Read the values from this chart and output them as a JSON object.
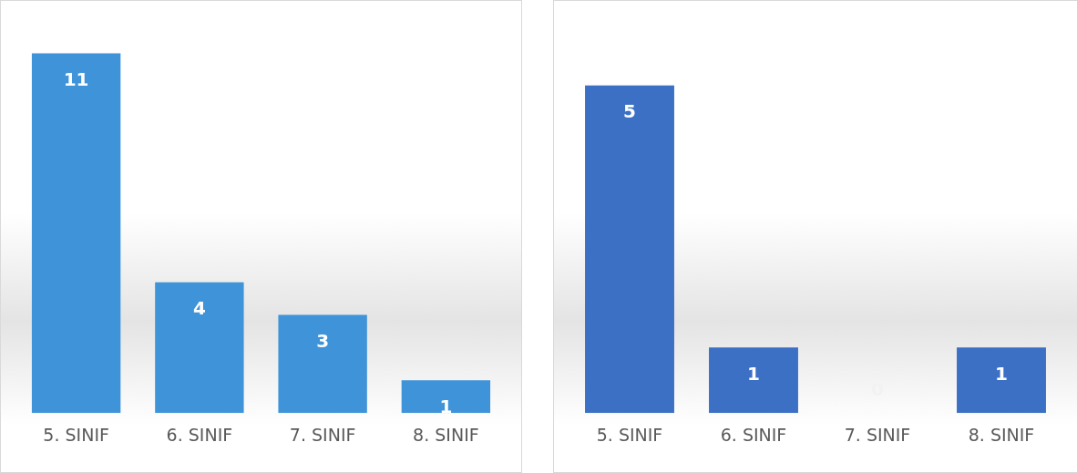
{
  "chart_data": [
    {
      "type": "bar",
      "categories": [
        "5. SINIF",
        "6. SINIF",
        "7. SINIF",
        "8. SINIF"
      ],
      "values": [
        11,
        4,
        3,
        1
      ],
      "color": "#3f93d8",
      "data_labels": true,
      "grid": false,
      "legend": false
    },
    {
      "type": "bar",
      "categories": [
        "5. SINIF",
        "6. SINIF",
        "7. SINIF",
        "8. SINIF"
      ],
      "values": [
        5,
        1,
        0,
        1
      ],
      "color": "#3b70c4",
      "data_labels": true,
      "grid": false,
      "legend": false
    }
  ]
}
